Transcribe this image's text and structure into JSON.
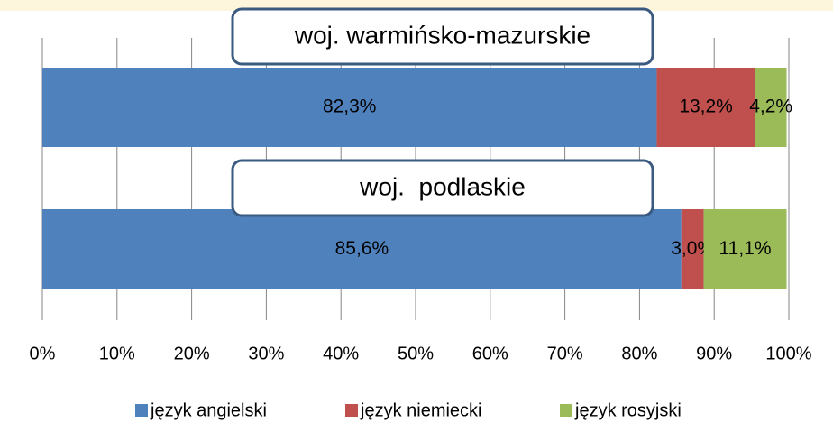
{
  "chart_data": {
    "type": "stacked_barh",
    "categories": [
      "woj. warmińsko-mazurskie",
      "woj.  podlaskie"
    ],
    "series": [
      {
        "name": "język angielski",
        "color": "#4f81bd",
        "values": [
          82.3,
          85.6
        ],
        "value_labels": [
          "82,3%",
          "85,6%"
        ]
      },
      {
        "name": "język niemiecki",
        "color": "#c0504d",
        "values": [
          13.2,
          3.0
        ],
        "value_labels": [
          "13,2%",
          "3,0%"
        ]
      },
      {
        "name": "język rosyjski",
        "color": "#9bbb59",
        "values": [
          4.2,
          11.1
        ],
        "value_labels": [
          "4,2%",
          "11,1%"
        ]
      }
    ],
    "xlim": [
      0,
      100
    ],
    "xticks": [
      {
        "value": 0,
        "label": "0%"
      },
      {
        "value": 10,
        "label": "10%"
      },
      {
        "value": 20,
        "label": "20%"
      },
      {
        "value": 30,
        "label": "30%"
      },
      {
        "value": 40,
        "label": "40%"
      },
      {
        "value": 50,
        "label": "50%"
      },
      {
        "value": 60,
        "label": "60%"
      },
      {
        "value": 70,
        "label": "70%"
      },
      {
        "value": 80,
        "label": "80%"
      },
      {
        "value": 90,
        "label": "90%"
      },
      {
        "value": 100,
        "label": "100%"
      }
    ],
    "grid": true,
    "legend": "bottom"
  }
}
